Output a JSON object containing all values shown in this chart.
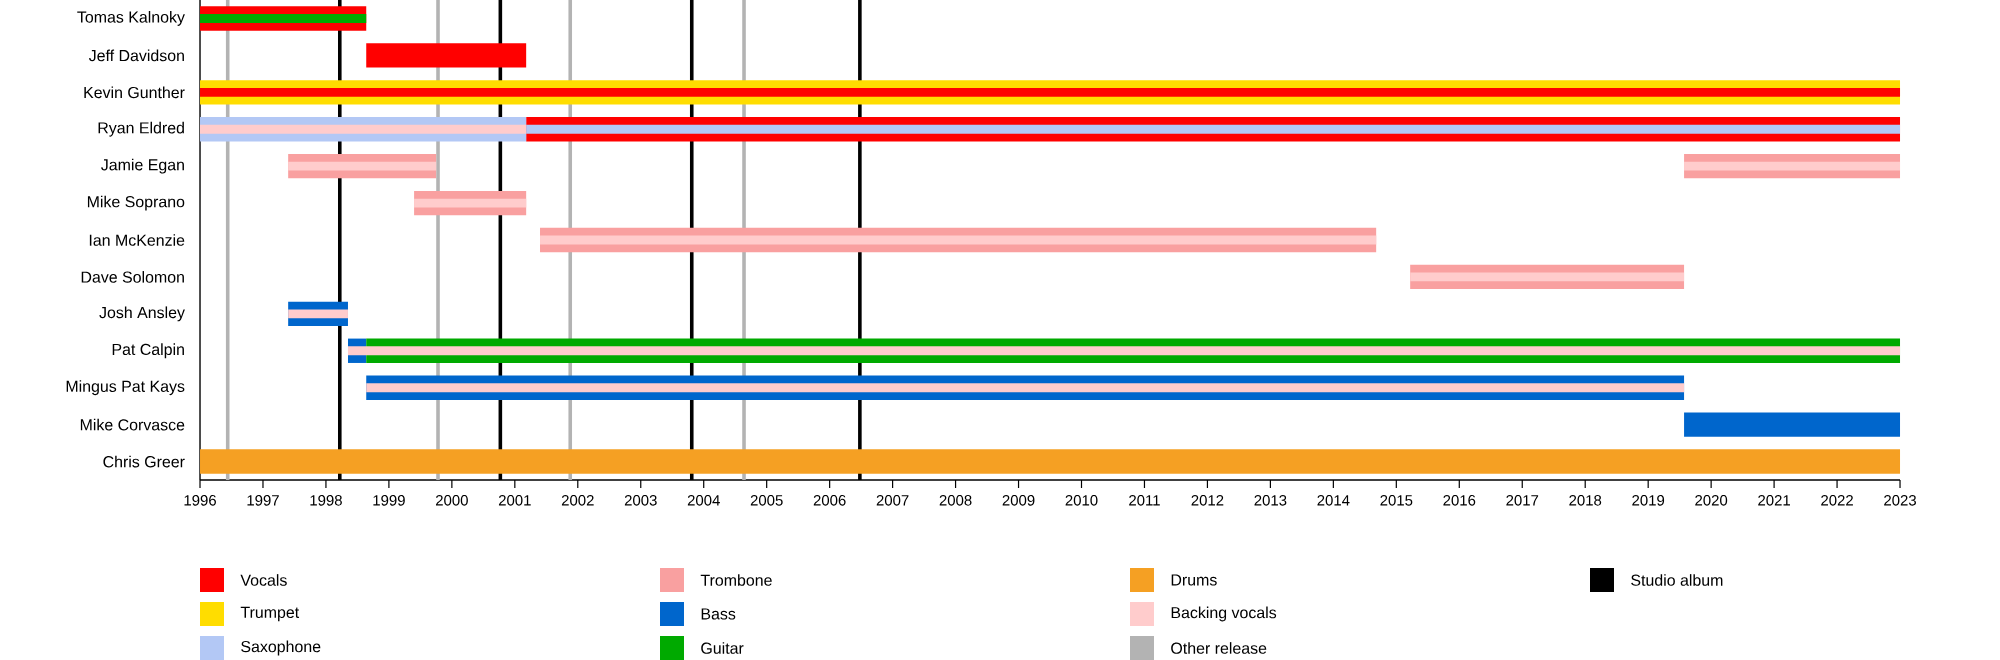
{
  "chart_data": {
    "type": "bar",
    "orientation": "horizontal",
    "legend": "bottom",
    "categories": [
      "Tomas Kalnoky",
      "Jeff Davidson",
      "Kevin Gunther",
      "Ryan Eldred",
      "Jamie Egan",
      "Mike Soprano",
      "Ian McKenzie",
      "Dave Solomon",
      "Josh Ansley",
      "Pat Calpin",
      "Mingus Pat Kays",
      "Mike Corvasce",
      "Chris Greer"
    ],
    "xlim": [
      1996,
      2023
    ],
    "xticks": [
      1996,
      1997,
      1998,
      1999,
      2000,
      2001,
      2002,
      2003,
      2004,
      2005,
      2006,
      2007,
      2008,
      2009,
      2010,
      2011,
      2012,
      2013,
      2014,
      2015,
      2016,
      2017,
      2018,
      2019,
      2020,
      2021,
      2022,
      2023
    ],
    "series": [
      {
        "name": "Vocals",
        "color": "#ff0000",
        "base": [
          1996,
          1998.64,
          null,
          2001.18,
          null,
          null,
          null,
          null,
          null,
          null,
          null,
          null,
          null
        ],
        "values": [
          2.64,
          2.54,
          null,
          21.82,
          null,
          null,
          null,
          null,
          null,
          null,
          null,
          null,
          null
        ]
      },
      {
        "name": "Trumpet",
        "color": "#ffdd00",
        "base": [
          null,
          null,
          1996,
          null,
          null,
          null,
          null,
          null,
          null,
          null,
          null,
          null,
          null
        ],
        "values": [
          null,
          null,
          27,
          null,
          null,
          null,
          null,
          null,
          null,
          null,
          null,
          null,
          null
        ]
      },
      {
        "name": "Saxophone",
        "color": "#b3c8f5",
        "base": [
          null,
          null,
          null,
          1996,
          null,
          null,
          null,
          null,
          null,
          null,
          null,
          null,
          null
        ],
        "values": [
          null,
          null,
          null,
          5.18,
          null,
          null,
          null,
          null,
          null,
          null,
          null,
          null,
          null
        ]
      },
      {
        "name": "Trombone",
        "color": "#f9a0a0",
        "base": [
          null,
          null,
          null,
          null,
          1997.4,
          1999.4,
          2001.4,
          2015.22,
          null,
          null,
          null,
          null,
          null
        ],
        "values": [
          null,
          null,
          null,
          null,
          2.35,
          1.78,
          13.28,
          4.35,
          null,
          null,
          null,
          null,
          null
        ]
      },
      {
        "color": "#f9a0a0",
        "base": [
          null,
          null,
          null,
          null,
          2019.57,
          null,
          null,
          null,
          null,
          null,
          null,
          null,
          null
        ],
        "values": [
          null,
          null,
          null,
          null,
          3.43,
          null,
          null,
          null,
          null,
          null,
          null,
          null,
          null
        ]
      },
      {
        "name": "Bass",
        "color": "#0066cc",
        "base": [
          null,
          null,
          null,
          null,
          null,
          null,
          null,
          null,
          1997.4,
          1998.35,
          1998.64,
          2019.57,
          null
        ],
        "values": [
          null,
          null,
          null,
          null,
          null,
          null,
          null,
          null,
          0.95,
          0.29,
          20.93,
          3.43,
          null
        ]
      },
      {
        "name": "Guitar",
        "color": "#00aa00",
        "base": [
          null,
          null,
          null,
          null,
          null,
          null,
          null,
          null,
          null,
          1998.64,
          null,
          null,
          null
        ],
        "values": [
          null,
          null,
          null,
          null,
          null,
          null,
          null,
          null,
          null,
          24.36,
          null,
          null,
          null
        ]
      },
      {
        "name": "Drums",
        "color": "#f5a023",
        "base": [
          null,
          null,
          null,
          null,
          null,
          null,
          null,
          null,
          null,
          null,
          null,
          null,
          1996
        ],
        "values": [
          null,
          null,
          null,
          null,
          null,
          null,
          null,
          null,
          null,
          null,
          null,
          null,
          27
        ]
      },
      {
        "color": "#00aa00",
        "base": [
          1996,
          null,
          null,
          null,
          null,
          null,
          null,
          null,
          null,
          null,
          null,
          null,
          null
        ],
        "values": [
          2.64,
          null,
          null,
          null,
          null,
          null,
          null,
          null,
          null,
          null,
          null,
          null,
          null
        ]
      },
      {
        "color": "#ff0000",
        "base": [
          null,
          null,
          1996,
          null,
          null,
          null,
          null,
          null,
          null,
          null,
          null,
          null,
          null
        ],
        "values": [
          null,
          null,
          27,
          null,
          null,
          null,
          null,
          null,
          null,
          null,
          null,
          null,
          null
        ]
      },
      {
        "name": "Backing vocals",
        "color": "#ffcccc",
        "base": [
          null,
          null,
          null,
          1996,
          1997.4,
          1999.4,
          2001.4,
          2015.22,
          1997.4,
          1998.35,
          1998.64,
          null,
          null
        ],
        "values": [
          null,
          null,
          null,
          5.18,
          2.35,
          1.78,
          13.28,
          4.35,
          0.95,
          24.65,
          20.93,
          null,
          null
        ]
      },
      {
        "color": "#b3c8f5",
        "base": [
          null,
          null,
          null,
          2001.18,
          null,
          null,
          null,
          null,
          null,
          null,
          null,
          null,
          null
        ],
        "values": [
          null,
          null,
          null,
          21.82,
          null,
          null,
          null,
          null,
          null,
          null,
          null,
          null,
          null
        ]
      },
      {
        "color": "#ffcccc",
        "base": [
          null,
          null,
          null,
          null,
          2019.57,
          null,
          null,
          null,
          null,
          null,
          null,
          null,
          null
        ],
        "values": [
          null,
          null,
          null,
          null,
          3.43,
          null,
          null,
          null,
          null,
          null,
          null,
          null,
          null
        ]
      }
    ],
    "ref_lines": [
      {
        "axis": "x",
        "value": 1996.44,
        "label": "Other release",
        "color": "#b3b3b3"
      },
      {
        "axis": "x",
        "value": 1998.22,
        "label": "Studio album",
        "color": "#000000"
      },
      {
        "axis": "x",
        "value": 1999.78,
        "label": null,
        "color": "#b3b3b3"
      },
      {
        "axis": "x",
        "value": 2000.77,
        "label": null,
        "color": "#000000"
      },
      {
        "axis": "x",
        "value": 2001.88,
        "label": null,
        "color": "#b3b3b3"
      },
      {
        "axis": "x",
        "value": 2003.81,
        "label": null,
        "color": "#000000"
      },
      {
        "axis": "x",
        "value": 2004.64,
        "label": null,
        "color": "#b3b3b3"
      },
      {
        "axis": "x",
        "value": 2006.48,
        "label": null,
        "color": "#000000"
      }
    ]
  }
}
